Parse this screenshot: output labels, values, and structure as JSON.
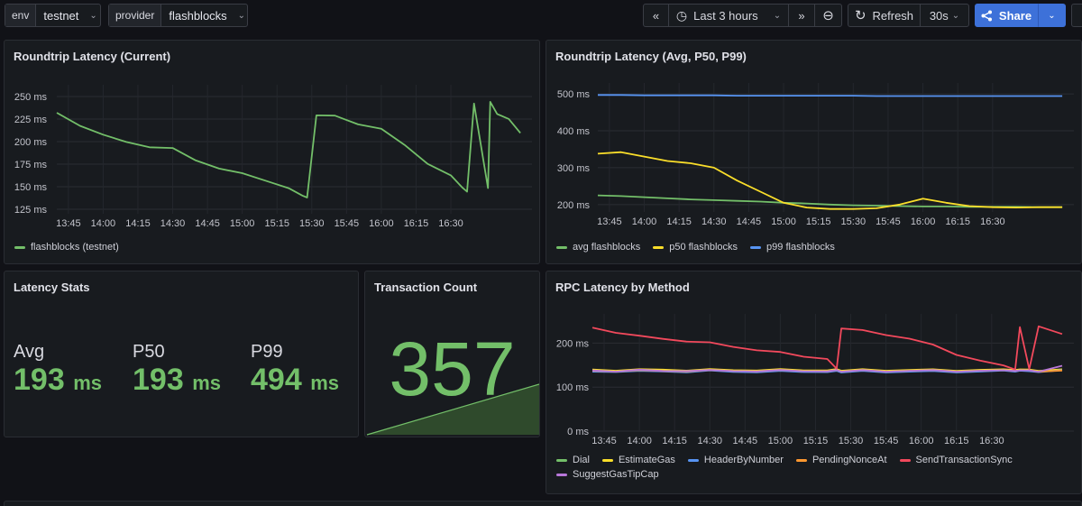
{
  "variables": [
    {
      "label": "env",
      "value": "testnet"
    },
    {
      "label": "provider",
      "value": "flashblocks"
    }
  ],
  "time_controls": {
    "back_icon": "«",
    "clock_icon": "◷",
    "range": "Last 3 hours",
    "forward_icon": "»",
    "zoom_out_icon": "⊖",
    "refresh_icon": "↻",
    "refresh_label": "Refresh",
    "refresh_interval": "30s",
    "share_label": "Share"
  },
  "panels": {
    "roundtrip_current": {
      "title": "Roundtrip Latency (Current)",
      "y_ticks": [
        "250 ms",
        "225 ms",
        "200 ms",
        "175 ms",
        "150 ms",
        "125 ms"
      ],
      "x_ticks": [
        "13:45",
        "14:00",
        "14:15",
        "14:30",
        "14:45",
        "15:00",
        "15:15",
        "15:30",
        "15:45",
        "16:00",
        "16:15",
        "16:30"
      ],
      "legend": [
        {
          "name": "flashblocks (testnet)",
          "color": "#73bf69"
        }
      ]
    },
    "roundtrip_stats": {
      "title": "Roundtrip Latency (Avg, P50, P99)",
      "y_ticks": [
        "500 ms",
        "400 ms",
        "300 ms",
        "200 ms"
      ],
      "x_ticks": [
        "13:45",
        "14:00",
        "14:15",
        "14:30",
        "14:45",
        "15:00",
        "15:15",
        "15:30",
        "15:45",
        "16:00",
        "16:15",
        "16:30"
      ],
      "legend": [
        {
          "name": "avg flashblocks",
          "color": "#73bf69"
        },
        {
          "name": "p50 flashblocks",
          "color": "#fade2a"
        },
        {
          "name": "p99 flashblocks",
          "color": "#5794f2"
        }
      ]
    },
    "latency_stats": {
      "title": "Latency Stats",
      "items": [
        {
          "label": "Avg",
          "value": "193",
          "unit": "ms"
        },
        {
          "label": "P50",
          "value": "193",
          "unit": "ms"
        },
        {
          "label": "P99",
          "value": "494",
          "unit": "ms"
        }
      ]
    },
    "tx_count": {
      "title": "Transaction Count",
      "value": "357"
    },
    "rpc_latency": {
      "title": "RPC Latency by Method",
      "y_ticks": [
        "200 ms",
        "100 ms",
        "0 ms"
      ],
      "x_ticks": [
        "13:45",
        "14:00",
        "14:15",
        "14:30",
        "14:45",
        "15:00",
        "15:15",
        "15:30",
        "15:45",
        "16:00",
        "16:15",
        "16:30"
      ],
      "legend": [
        {
          "name": "Dial",
          "color": "#73bf69"
        },
        {
          "name": "EstimateGas",
          "color": "#fade2a"
        },
        {
          "name": "HeaderByNumber",
          "color": "#5794f2"
        },
        {
          "name": "PendingNonceAt",
          "color": "#ff9830"
        },
        {
          "name": "SendTransactionSync",
          "color": "#f2495c"
        },
        {
          "name": "SuggestGasTipCap",
          "color": "#b877d9"
        }
      ]
    }
  },
  "chart_data": [
    {
      "type": "line",
      "title": "Roundtrip Latency (Current)",
      "ylabel": "ms",
      "ylim": [
        120,
        255
      ],
      "x_minutes": [
        0,
        10,
        20,
        30,
        40,
        50,
        60,
        70,
        80,
        90,
        100,
        106,
        108,
        112,
        120,
        130,
        140,
        150,
        160,
        170,
        175,
        177,
        180,
        186,
        187,
        190,
        195,
        200
      ],
      "series": [
        {
          "name": "flashblocks (testnet)",
          "color": "#73bf69",
          "values": [
            232,
            220,
            205,
            200,
            196,
            190,
            180,
            172,
            162,
            158,
            150,
            142,
            138,
            232,
            228,
            222,
            212,
            196,
            178,
            160,
            146,
            146,
            240,
            146,
            242,
            232,
            228,
            212
          ]
        }
      ]
    },
    {
      "type": "line",
      "title": "Roundtrip Latency (Avg, P50, P99)",
      "ylabel": "ms",
      "ylim": [
        180,
        510
      ],
      "x_minutes": [
        0,
        10,
        20,
        30,
        40,
        50,
        60,
        70,
        80,
        90,
        100,
        110,
        120,
        130,
        140,
        150,
        160,
        170,
        180,
        190,
        200
      ],
      "series": [
        {
          "name": "avg flashblocks",
          "color": "#73bf69",
          "values": [
            225,
            223,
            220,
            217,
            214,
            212,
            210,
            208,
            205,
            203,
            200,
            198,
            197,
            196,
            195,
            195,
            194,
            194,
            194,
            193,
            193
          ]
        },
        {
          "name": "p50 flashblocks",
          "color": "#fade2a",
          "values": [
            338,
            342,
            330,
            318,
            312,
            300,
            265,
            235,
            205,
            192,
            188,
            188,
            190,
            200,
            216,
            205,
            196,
            193,
            192,
            193,
            193
          ]
        },
        {
          "name": "p99 flashblocks",
          "color": "#5794f2",
          "values": [
            497,
            497,
            496,
            496,
            496,
            496,
            495,
            495,
            495,
            495,
            495,
            495,
            494,
            494,
            494,
            494,
            494,
            494,
            494,
            494,
            494
          ]
        }
      ]
    },
    {
      "type": "line",
      "title": "RPC Latency by Method",
      "ylabel": "ms",
      "ylim": [
        0,
        250
      ],
      "x_minutes": [
        0,
        10,
        20,
        30,
        40,
        50,
        60,
        70,
        80,
        90,
        100,
        104,
        106,
        115,
        125,
        135,
        145,
        155,
        165,
        175,
        180,
        182,
        186,
        190,
        200
      ],
      "series": [
        {
          "name": "Dial",
          "color": "#73bf69",
          "values": [
            138,
            138,
            138,
            138,
            138,
            138,
            138,
            138,
            138,
            138,
            138,
            138,
            138,
            138,
            138,
            138,
            138,
            138,
            138,
            138,
            138,
            138,
            138,
            138,
            138
          ]
        },
        {
          "name": "EstimateGas",
          "color": "#fade2a",
          "values": [
            140,
            139,
            139,
            140,
            139,
            139,
            139,
            139,
            139,
            139,
            139,
            139,
            139,
            139,
            139,
            139,
            139,
            139,
            139,
            139,
            139,
            139,
            139,
            139,
            140
          ]
        },
        {
          "name": "HeaderByNumber",
          "color": "#5794f2",
          "values": [
            135,
            136,
            135,
            136,
            135,
            136,
            135,
            135,
            135,
            135,
            135,
            135,
            135,
            135,
            135,
            135,
            135,
            135,
            135,
            136,
            135,
            136,
            135,
            136,
            138
          ]
        },
        {
          "name": "PendingNonceAt",
          "color": "#ff9830",
          "values": [
            137,
            137,
            137,
            137,
            137,
            137,
            137,
            137,
            137,
            137,
            137,
            137,
            137,
            137,
            137,
            137,
            137,
            137,
            137,
            137,
            137,
            137,
            137,
            137,
            137
          ]
        },
        {
          "name": "SendTransactionSync",
          "color": "#f2495c",
          "values": [
            235,
            225,
            215,
            210,
            205,
            200,
            192,
            185,
            178,
            170,
            165,
            140,
            235,
            228,
            220,
            210,
            195,
            175,
            160,
            148,
            140,
            235,
            140,
            240,
            220
          ]
        },
        {
          "name": "SuggestGasTipCap",
          "color": "#b877d9",
          "values": [
            138,
            137,
            138,
            137,
            138,
            137,
            137,
            137,
            137,
            137,
            137,
            137,
            137,
            137,
            137,
            137,
            137,
            137,
            137,
            137,
            137,
            137,
            137,
            137,
            148
          ]
        }
      ]
    },
    {
      "type": "area",
      "title": "Transaction Count",
      "x_fraction": [
        0,
        1
      ],
      "values": [
        0,
        357
      ]
    }
  ]
}
